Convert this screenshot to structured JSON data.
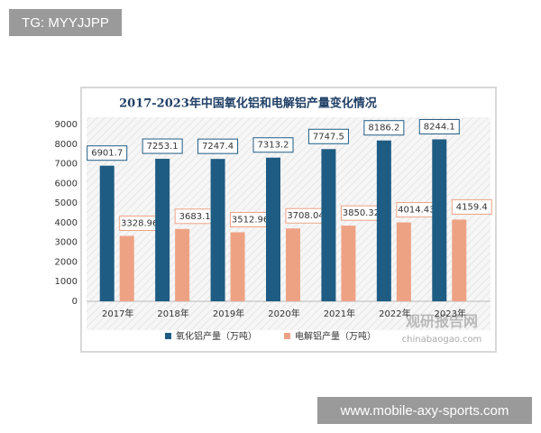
{
  "tag_text": "TG: MYYJJPP",
  "footer_text": "www.mobile-axy-sports.com",
  "watermark": {
    "name": "观研报告网",
    "url": "chinabaogao.com"
  },
  "chart_data": {
    "type": "bar",
    "title": "2017-2023年中国氧化铝和电解铝产量变化情况",
    "categories": [
      "2017年",
      "2018年",
      "2019年",
      "2020年",
      "2021年",
      "2022年",
      "2023年"
    ],
    "series": [
      {
        "name": "氧化铝产量（万吨）",
        "color": "#1f5c84",
        "values": [
          6901.7,
          7253.1,
          7247.4,
          7313.2,
          7747.5,
          8186.2,
          8244.1
        ]
      },
      {
        "name": "电解铝产量（万吨）",
        "color": "#eea284",
        "values": [
          3328.96,
          3683.1,
          3512.96,
          3708.04,
          3850.32,
          4014.43,
          4159.4
        ]
      }
    ],
    "ylim": [
      0,
      9000
    ],
    "yticks": [
      0,
      1000,
      2000,
      3000,
      4000,
      5000,
      6000,
      7000,
      8000,
      9000
    ],
    "grid": false,
    "legend": "bottom"
  }
}
